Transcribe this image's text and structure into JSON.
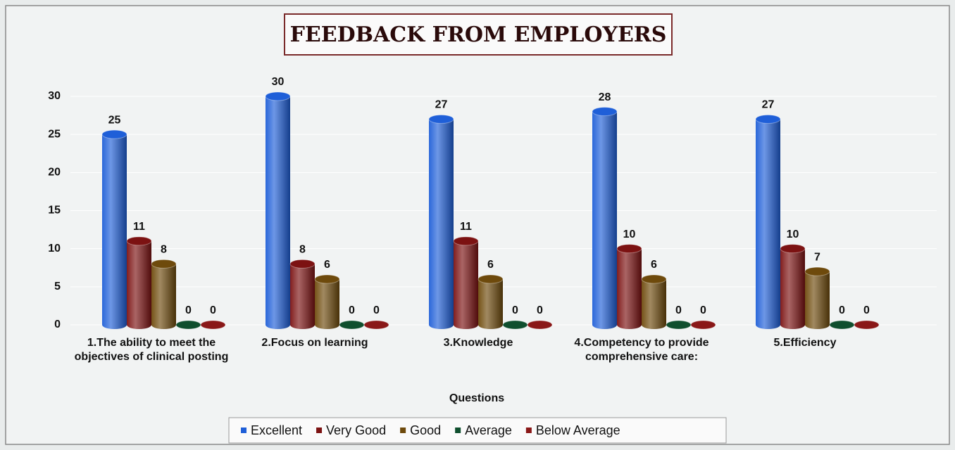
{
  "chart_data": {
    "type": "bar",
    "title": "FEEDBACK FROM EMPLOYERS",
    "x_label": "Questions",
    "categories": [
      "1.The ability to meet the objectives of clinical posting",
      "2.Focus on learning",
      "3.Knowledge",
      "4.Competency to provide comprehensive care:",
      "5.Efficiency"
    ],
    "series": [
      {
        "name": "Excellent",
        "color": "#1f5fd8",
        "values": [
          25,
          30,
          27,
          28,
          27
        ]
      },
      {
        "name": "Very Good",
        "color": "#7c1212",
        "values": [
          11,
          8,
          11,
          10,
          10
        ]
      },
      {
        "name": "Good",
        "color": "#6e4a0c",
        "values": [
          8,
          6,
          6,
          6,
          7
        ]
      },
      {
        "name": "Average",
        "color": "#0f4f2e",
        "values": [
          0,
          0,
          0,
          0,
          0
        ]
      },
      {
        "name": "Below Average",
        "color": "#8a1818",
        "values": [
          0,
          0,
          0,
          0,
          0
        ]
      }
    ],
    "ylim": [
      0,
      30
    ],
    "yticks": [
      0,
      5,
      10,
      15,
      20,
      25,
      30
    ],
    "grid": true,
    "legend": "bottom"
  }
}
